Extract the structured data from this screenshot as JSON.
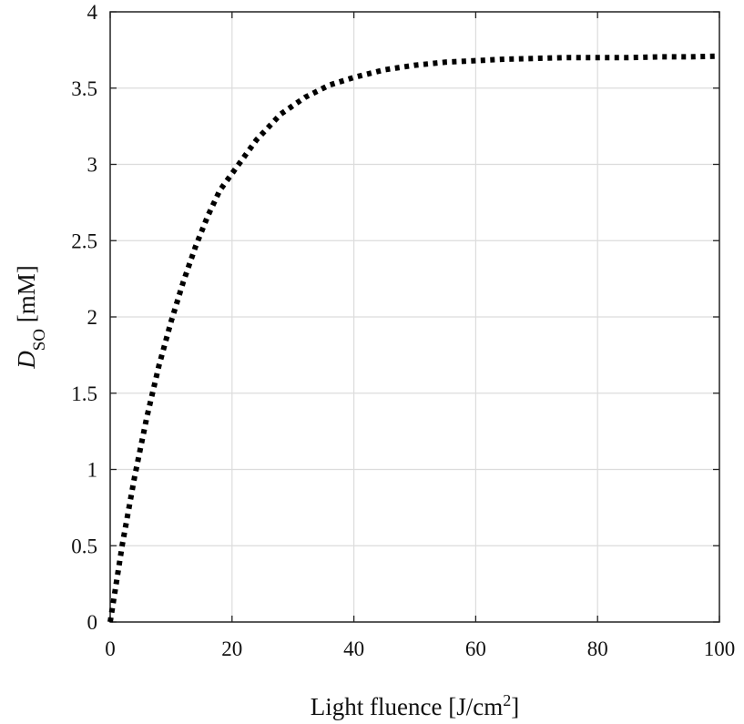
{
  "chart_data": {
    "type": "line",
    "title": "",
    "xlabel": {
      "text": "Light fluence [J/cm",
      "superscript": "2",
      "suffix": "]"
    },
    "ylabel": {
      "text": "D",
      "subscript": "SO",
      "suffix": " [mM]"
    },
    "xlim": [
      0,
      100
    ],
    "ylim": [
      0,
      4
    ],
    "xticks": [
      0,
      20,
      40,
      60,
      80,
      100
    ],
    "yticks": [
      0,
      0.5,
      1,
      1.5,
      2,
      2.5,
      3,
      3.5,
      4
    ],
    "xtick_labels": [
      "0",
      "20",
      "40",
      "60",
      "80",
      "100"
    ],
    "ytick_labels": [
      "0",
      "0.5",
      "1",
      "1.5",
      "2",
      "2.5",
      "3",
      "3.5",
      "4"
    ],
    "grid": true,
    "line_style": "dotted",
    "series": [
      {
        "x": [
          0,
          2,
          4,
          6,
          8,
          10,
          12,
          14,
          16,
          18,
          20,
          24,
          28,
          32,
          36,
          40,
          45,
          50,
          55,
          60,
          65,
          70,
          75,
          80,
          85,
          90,
          95,
          100
        ],
        "y": [
          0,
          0.51,
          0.95,
          1.34,
          1.68,
          1.97,
          2.23,
          2.46,
          2.66,
          2.83,
          2.94,
          3.16,
          3.33,
          3.44,
          3.52,
          3.57,
          3.62,
          3.65,
          3.67,
          3.68,
          3.69,
          3.695,
          3.7,
          3.7,
          3.7,
          3.705,
          3.705,
          3.71
        ]
      }
    ],
    "colors": {
      "line": "#000000",
      "grid": "#dcdcdc",
      "axes": "#222222"
    }
  }
}
